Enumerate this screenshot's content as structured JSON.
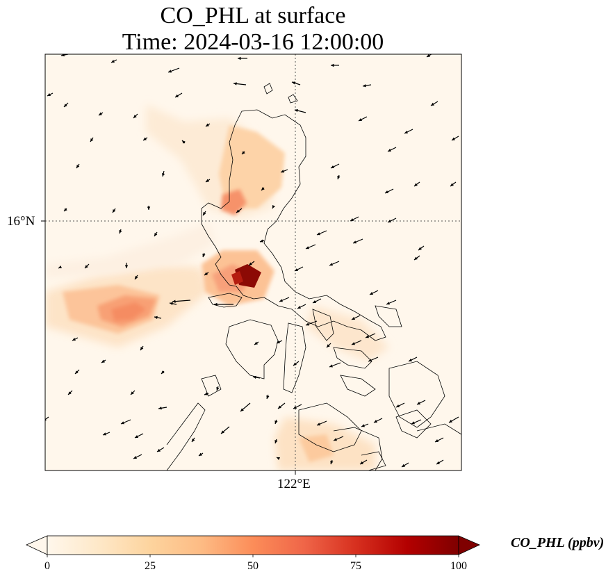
{
  "title": {
    "line1": "CO_PHL at surface",
    "line2": "Time: 2024-03-16 12:00:00"
  },
  "axes": {
    "lat_tick": "16°N",
    "lon_tick": "122°E"
  },
  "colorbar": {
    "label": "CO_PHL (ppbv)",
    "ticks": [
      "0",
      "25",
      "50",
      "75",
      "100"
    ],
    "range": [
      0,
      100
    ],
    "extend": "both",
    "colormap": "OrRd",
    "colors": [
      "#fff7ec",
      "#fee8c8",
      "#fdd49e",
      "#fdbb84",
      "#fc8d59",
      "#ef6548",
      "#d7301f",
      "#b30000",
      "#7f0000"
    ]
  },
  "map": {
    "background": "#fff7ec",
    "gridlines": "dotted"
  }
}
